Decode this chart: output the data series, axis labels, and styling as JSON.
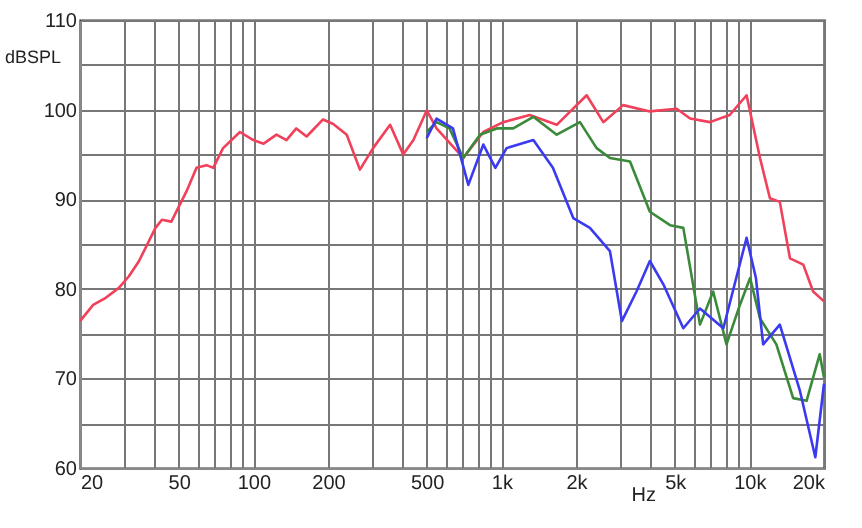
{
  "chart_data": {
    "type": "line",
    "xlabel": "Hz",
    "ylabel": "dBSPL",
    "log": "x",
    "grid": true,
    "line_style": "solid",
    "marker": "none",
    "xlim": [
      20,
      20000
    ],
    "ylim": [
      60,
      110
    ],
    "xticks": [
      20,
      {
        "value": 30,
        "label": null
      },
      {
        "value": 40,
        "label": null
      },
      50,
      {
        "value": 60,
        "label": null
      },
      {
        "value": 70,
        "label": null
      },
      {
        "value": 80,
        "label": null
      },
      {
        "value": 90,
        "label": null
      },
      100,
      200,
      {
        "value": 300,
        "label": null
      },
      {
        "value": 400,
        "label": null
      },
      500,
      {
        "value": 600,
        "label": null
      },
      {
        "value": 700,
        "label": null
      },
      {
        "value": 800,
        "label": null
      },
      {
        "value": 900,
        "label": null
      },
      {
        "value": 1000,
        "label": "1k"
      },
      {
        "value": 2000,
        "label": "2k"
      },
      {
        "value": 3000,
        "label": null
      },
      {
        "value": 4000,
        "label": null
      },
      {
        "value": 5000,
        "label": "5k"
      },
      {
        "value": 6000,
        "label": null
      },
      {
        "value": 7000,
        "label": null
      },
      {
        "value": 8000,
        "label": null
      },
      {
        "value": 9000,
        "label": null
      },
      {
        "value": 10000,
        "label": "10k"
      },
      {
        "value": 20000,
        "label": "20k"
      }
    ],
    "yticks": [
      60,
      {
        "value": 65,
        "label": null
      },
      70,
      {
        "value": 75,
        "label": null
      },
      80,
      {
        "value": 85,
        "label": null
      },
      90,
      {
        "value": 95,
        "label": null
      },
      100,
      {
        "value": 105,
        "label": null
      },
      110
    ],
    "series": [
      {
        "color": "#f0405a",
        "x": [
          20,
          22.6,
          25.4,
          28.7,
          31.5,
          34.6,
          40.3,
          42.8,
          46.7,
          53.8,
          59,
          64.8,
          68.9,
          75.5,
          88.3,
          100,
          110,
          124,
          136,
          149,
          164,
          191,
          210,
          238,
          269,
          304,
          356,
          402,
          442,
          500,
          548,
          702,
          846,
          1017,
          1302,
          1672,
          2208,
          2577,
          3098,
          3971,
          5093,
          5770,
          6933,
          8333,
          9747,
          11040,
          12104,
          13270,
          14580,
          16500,
          18080,
          20000
        ],
        "values": [
          76.4,
          78.2,
          79,
          80.1,
          81.4,
          83.1,
          86.8,
          87.7,
          87.5,
          90.9,
          93.5,
          93.8,
          93.5,
          95.7,
          97.5,
          96.6,
          96.2,
          97.2,
          96.6,
          97.9,
          97,
          98.9,
          98.4,
          97.2,
          93.3,
          95.7,
          98.3,
          95,
          96.6,
          99.9,
          97.9,
          94.6,
          97.5,
          98.6,
          99.4,
          98.3,
          101.6,
          98.6,
          100.5,
          99.8,
          100.1,
          99,
          98.6,
          99.4,
          101.6,
          94.6,
          90.1,
          89.7,
          83.4,
          82.7,
          79.7,
          78.6
        ]
      },
      {
        "color": "#3a8a3a",
        "x": [
          500,
          548,
          618,
          702,
          820,
          958,
          1117,
          1346,
          1672,
          2075,
          2422,
          2741,
          3302,
          3971,
          4789,
          5417,
          6323,
          7147,
          8090,
          9160,
          10070,
          11040,
          12850,
          15020,
          17010,
          19220,
          20000
        ],
        "values": [
          97.5,
          98.6,
          97.9,
          94.6,
          97.2,
          97.9,
          97.9,
          99.2,
          97.2,
          98.6,
          95.7,
          94.6,
          94.2,
          88.6,
          87.1,
          86.8,
          76,
          79.7,
          73.8,
          78.2,
          81.2,
          76.7,
          73.8,
          67.8,
          67.5,
          72.7,
          70.1
        ]
      },
      {
        "color": "#3a3af0",
        "x": [
          500,
          548,
          638,
          736,
          846,
          946,
          1050,
          1346,
          1614,
          1950,
          2275,
          2741,
          3062,
          3507,
          3971,
          4500,
          5417,
          6323,
          7856,
          9747,
          10630,
          11370,
          13270,
          16000,
          18450,
          20000
        ],
        "values": [
          96.8,
          99,
          97.9,
          91.6,
          96.1,
          93.5,
          95.7,
          96.6,
          93.5,
          87.9,
          86.8,
          84.2,
          76.4,
          79.7,
          83.1,
          80.5,
          75.6,
          77.8,
          75.6,
          85.7,
          81.2,
          73.8,
          76,
          68.6,
          61.2,
          69.4
        ]
      }
    ]
  }
}
